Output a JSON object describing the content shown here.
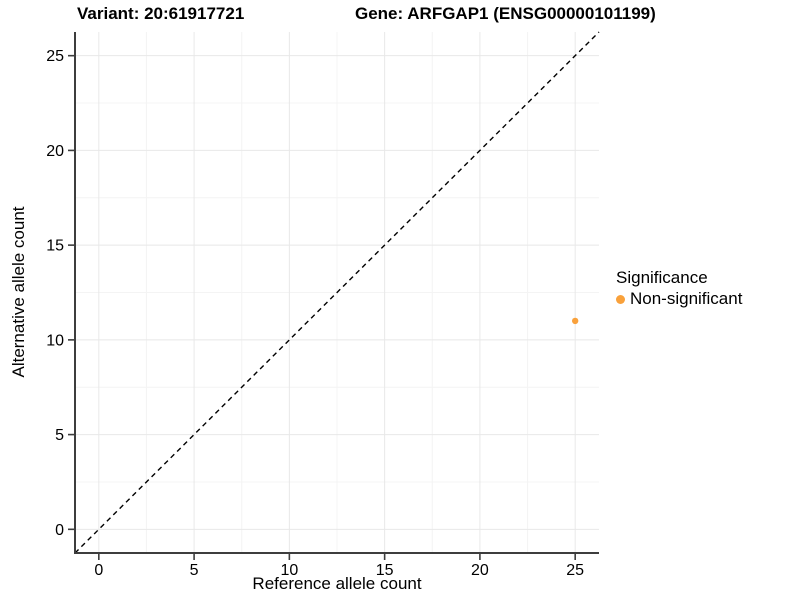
{
  "titles": {
    "left": "Variant: 20:61917721",
    "right": "Gene: ARFGAP1 (ENSG00000101199)"
  },
  "legend": {
    "title": "Significance",
    "items": [
      {
        "label": "Non-significant",
        "color": "#F9A13B"
      }
    ]
  },
  "chart_data": {
    "type": "scatter",
    "title_left": "Variant: 20:61917721",
    "title_right": "Gene: ARFGAP1 (ENSG00000101199)",
    "xlabel": "Reference allele count",
    "ylabel": "Alternative allele count",
    "xlim": [
      -1.25,
      26.25
    ],
    "ylim": [
      -1.25,
      26.25
    ],
    "xticks": [
      0,
      5,
      10,
      15,
      20,
      25
    ],
    "yticks": [
      0,
      5,
      10,
      15,
      20,
      25
    ],
    "minor_xticks": [
      2.5,
      7.5,
      12.5,
      17.5,
      22.5
    ],
    "minor_yticks": [
      2.5,
      7.5,
      12.5,
      17.5,
      22.5
    ],
    "grid": true,
    "legend_position": "right",
    "series": [
      {
        "name": "Non-significant",
        "color": "#F9A13B",
        "points": [
          {
            "x": 25,
            "y": 11
          }
        ]
      }
    ],
    "reference_line": {
      "kind": "identity",
      "style": "dashed",
      "x1": -1.25,
      "y1": -1.25,
      "x2": 26.25,
      "y2": 26.25,
      "color": "#000000"
    },
    "colors": {
      "point": "#F9A13B",
      "axis_line": "#3d3d3d",
      "tick_mark": "#3d3d3d",
      "grid_major": "#e8e8e8",
      "grid_minor": "#f4f4f4",
      "text": "#000000",
      "background": "#ffffff"
    }
  }
}
